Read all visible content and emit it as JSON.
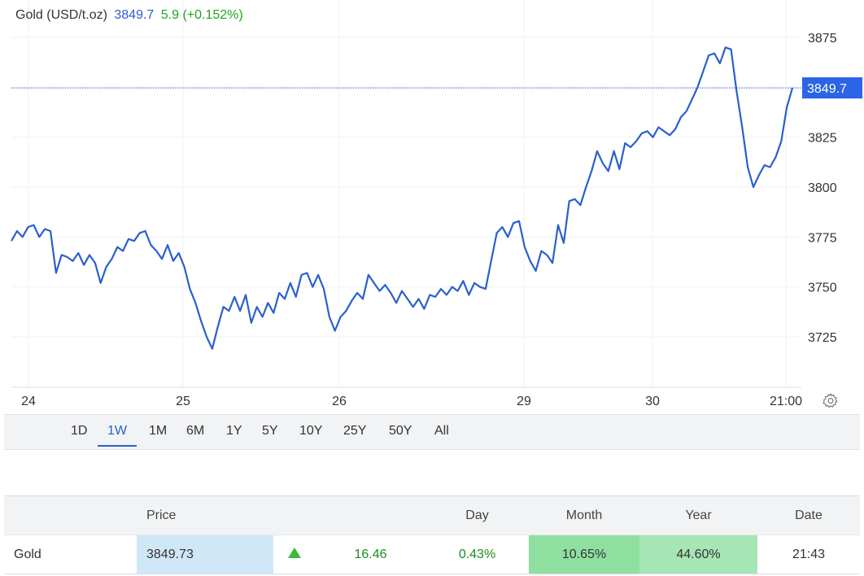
{
  "header": {
    "instrument": "Gold (USD/t.oz)",
    "price": "3849.7",
    "change": "5.9 (+0.152%)"
  },
  "price_tag": "3849.7",
  "range_tabs": [
    "1D",
    "1W",
    "1M",
    "6M",
    "1Y",
    "5Y",
    "10Y",
    "25Y",
    "50Y",
    "All"
  ],
  "range_active": "1W",
  "colors": {
    "line": "#2b5fce",
    "accent": "#2b5fce",
    "positive_text": "#1e8c1e",
    "positive_fill": "#8fe0a0"
  },
  "icons": {
    "settings": "gear-icon",
    "trend": "triangle-up-icon"
  },
  "table": {
    "headers": [
      "",
      "Price",
      "",
      "",
      "Day",
      "Month",
      "Year",
      "Date"
    ],
    "row": {
      "name": "Gold",
      "price": "3849.73",
      "change": "16.46",
      "day": "0.43%",
      "month": "10.65%",
      "year": "44.60%",
      "date": "21:43"
    }
  },
  "chart_data": {
    "type": "line",
    "title": "Gold (USD/t.oz)",
    "xlabel": "",
    "ylabel": "",
    "x_ticks": [
      "24",
      "25",
      "26",
      "29",
      "30",
      "21:00"
    ],
    "y_ticks": [
      3725,
      3750,
      3775,
      3800,
      3825,
      3850,
      3875
    ],
    "ylim": [
      3700,
      3885
    ],
    "last_value": 3849.7,
    "grid": true,
    "series": [
      {
        "values": [
          3773,
          3778,
          3775,
          3780,
          3781,
          3775,
          3779,
          3778,
          3757,
          3766,
          3765,
          3763,
          3767,
          3761,
          3766,
          3762,
          3752,
          3760,
          3764,
          3770,
          3768,
          3774,
          3773,
          3777,
          3778,
          3771,
          3768,
          3764,
          3771,
          3763,
          3767,
          3760,
          3749,
          3742,
          3733,
          3725,
          3719,
          3730,
          3740,
          3738,
          3745,
          3738,
          3746,
          3732,
          3740,
          3735,
          3742,
          3737,
          3747,
          3744,
          3752,
          3745,
          3756,
          3757,
          3750,
          3756,
          3749,
          3735,
          3728,
          3735,
          3738,
          3743,
          3747,
          3744,
          3756,
          3752,
          3748,
          3751,
          3747,
          3742,
          3748,
          3744,
          3740,
          3744,
          3739,
          3746,
          3745,
          3749,
          3746,
          3750,
          3748,
          3753,
          3746,
          3752,
          3750,
          3749,
          3763,
          3777,
          3780,
          3775,
          3782,
          3783,
          3770,
          3763,
          3758,
          3768,
          3766,
          3762,
          3781,
          3772,
          3793,
          3794,
          3791,
          3800,
          3808,
          3818,
          3812,
          3808,
          3818,
          3809,
          3822,
          3820,
          3823,
          3827,
          3828,
          3825,
          3830,
          3828,
          3826,
          3829,
          3835,
          3838,
          3844,
          3850,
          3858,
          3866,
          3867,
          3862,
          3870,
          3869,
          3848,
          3830,
          3810,
          3800,
          3806,
          3811,
          3810,
          3815,
          3823,
          3840,
          3849.7
        ]
      }
    ]
  }
}
